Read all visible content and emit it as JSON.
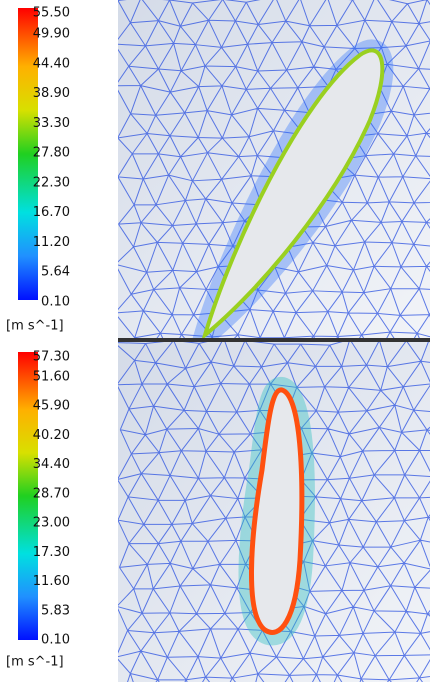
{
  "panels": [
    {
      "legend": {
        "labels": [
          "55.50",
          "49.90",
          "44.40",
          "38.90",
          "33.30",
          "27.80",
          "22.30",
          "16.70",
          "11.20",
          "5.64",
          "0.10"
        ],
        "unit": "[m s^-1]"
      }
    },
    {
      "legend": {
        "labels": [
          "57.30",
          "51.60",
          "45.90",
          "40.20",
          "34.40",
          "28.70",
          "23.00",
          "17.30",
          "11.60",
          "5.83",
          "0.10"
        ],
        "unit": "[m s^-1]"
      }
    }
  ]
}
